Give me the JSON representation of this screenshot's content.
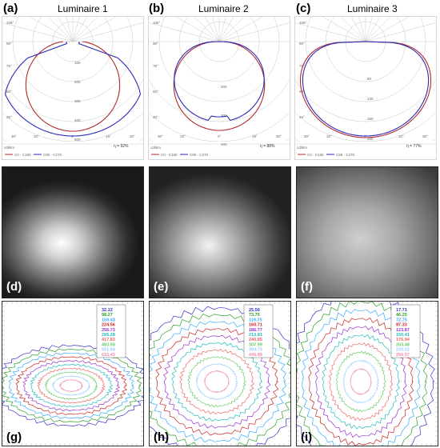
{
  "panels": {
    "a": "(a)",
    "b": "(b)",
    "c": "(c)",
    "d": "(d)",
    "e": "(e)",
    "f": "(f)",
    "g": "(g)",
    "h": "(h)",
    "i": "(i)"
  },
  "luminaires": [
    {
      "title": "Luminaire 1",
      "unit": "cd/klm",
      "efficiency": "η = 92%",
      "legend_c0": "C0 - C180",
      "legend_c90": "C90 - C270",
      "radial_ticks": [
        "100",
        "200",
        "300",
        "400",
        "500"
      ],
      "angle_ticks": [
        "105°",
        "90°",
        "75°",
        "60°",
        "45°",
        "30°",
        "15°",
        "0°",
        "15°",
        "30°"
      ],
      "contours": [
        "32.12",
        "98.27",
        "159.43",
        "224.56",
        "256.73",
        "285.28",
        "417.83",
        "483.59",
        "551.54",
        "615.43"
      ]
    },
    {
      "title": "Luminaire 2",
      "unit": "cd/klm",
      "efficiency": "η = 88%",
      "legend_c0": "C0 - C180",
      "legend_c90": "C90 - C270",
      "radial_ticks": [
        "200",
        "300",
        "400"
      ],
      "angle_ticks": [
        "105°",
        "90°",
        "75°",
        "60°",
        "45°",
        "30°",
        "15°",
        "0°",
        "15°",
        "30°"
      ],
      "contours": [
        "25.56",
        "73.75",
        "119.75",
        "160.71",
        "186.77",
        "213.81",
        "240.85",
        "307.99",
        "394.73",
        "445.99"
      ]
    },
    {
      "title": "Luminaire 3",
      "unit": "cd/klm",
      "efficiency": "η = 77%",
      "legend_c0": "C0 - C180",
      "legend_c90": "C90 - C270",
      "radial_ticks": [
        "80",
        "120",
        "160",
        "200"
      ],
      "angle_ticks": [
        "105°",
        "90°",
        "75°",
        "60°",
        "45°",
        "30°",
        "15°",
        "0°",
        "15°",
        "30°"
      ],
      "contours": [
        "17.71",
        "46.25",
        "72.75",
        "97.33",
        "123.87",
        "150.41",
        "176.94",
        "203.48",
        "230.02",
        "256.57"
      ]
    }
  ],
  "colors": {
    "c0": "#b22a2a",
    "c90": "#2a2ab8",
    "contour": [
      "#3333cc",
      "#2aa02a",
      "#33aaff",
      "#cc2222",
      "#9933cc",
      "#22bbbb",
      "#ee6666",
      "#66cc66",
      "#99ccff",
      "#ee88aa"
    ]
  }
}
